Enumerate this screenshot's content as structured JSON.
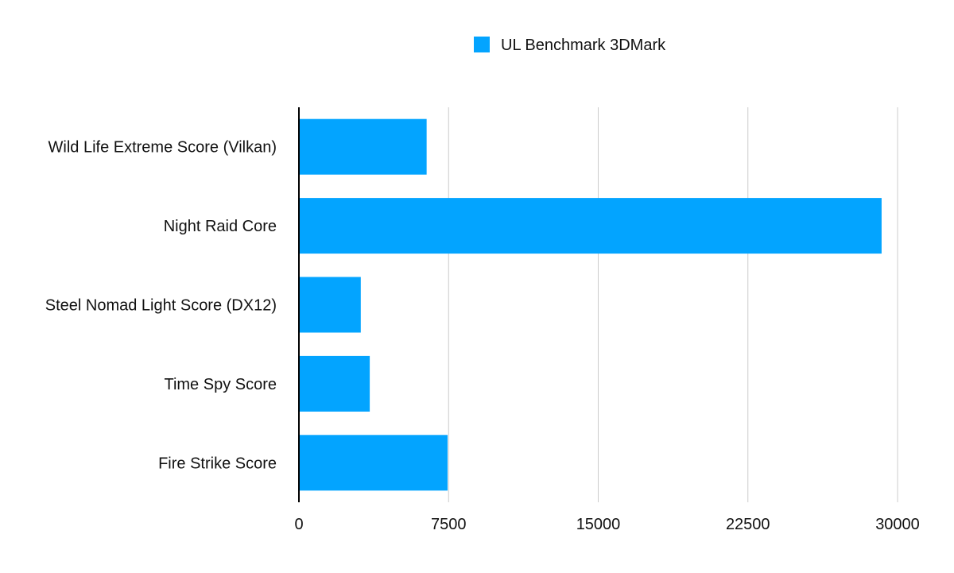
{
  "chart_data": {
    "type": "bar",
    "orientation": "horizontal",
    "categories": [
      "Wild Life Extreme Score (Vilkan)",
      "Night Raid Core",
      "Steel Nomad Light Score (DX12)",
      "Time Spy Score",
      "Fire Strike Score"
    ],
    "series": [
      {
        "name": "UL Benchmark 3DMark",
        "values": [
          6400,
          29200,
          3100,
          3550,
          7450
        ],
        "color": "#03A4FF"
      }
    ],
    "x_ticks": [
      "0",
      "7500",
      "15000",
      "22500",
      "30000"
    ],
    "xlim": [
      0,
      30000
    ],
    "grid": true,
    "legend_position": "top-center"
  }
}
